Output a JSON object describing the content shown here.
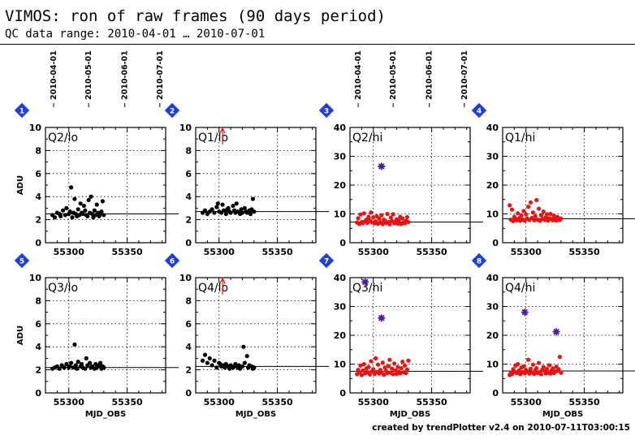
{
  "header": {
    "title": "VIMOS: ron of raw frames (90 days period)",
    "subtitle": "QC data range: 2010-04-01 … 2010-07-01"
  },
  "footer": {
    "text": "created by trendPlotter v2.4 on 2010-07-11T03:00:15"
  },
  "colors": {
    "lo_points": "#000000",
    "hi_points": "#ee1111",
    "outlier": "#4a1aa0",
    "badge": "#1f3fd8",
    "median_line": "#000000",
    "grid": "#000000",
    "arrow": "#ee1111"
  },
  "chart_data": [
    {
      "type": "scatter",
      "badge": "1",
      "label": "Q2/lo",
      "ylim": [
        0,
        10
      ],
      "yticks": [
        0,
        2,
        4,
        6,
        8,
        10
      ],
      "xlim": [
        55280,
        55383
      ],
      "xticks": [
        55300,
        55350
      ],
      "date_axis": [
        "2010-04-01",
        "2010-05-01",
        "2010-06-01",
        "2010-07-01"
      ],
      "ylabel": "ADU",
      "xlabel": "",
      "median": 2.5,
      "point_color": "lo_points",
      "series": [
        {
          "x": [
            55286,
            55288,
            55290,
            55292,
            55293,
            55295,
            55297,
            55298,
            55300,
            55301,
            55302,
            55303,
            55304,
            55305,
            55306,
            55307,
            55308,
            55309,
            55310,
            55311,
            55312,
            55313,
            55314,
            55315,
            55316,
            55317,
            55318,
            55319,
            55320,
            55321,
            55322,
            55323,
            55324,
            55325,
            55326,
            55327,
            55328,
            55329,
            55330
          ],
          "y": [
            2.4,
            2.2,
            2.6,
            2.5,
            2.3,
            2.8,
            2.4,
            3.0,
            2.5,
            2.7,
            4.8,
            2.2,
            2.6,
            3.8,
            2.5,
            2.3,
            2.9,
            2.4,
            3.4,
            2.6,
            2.5,
            3.2,
            2.8,
            2.4,
            2.3,
            3.7,
            2.6,
            4.0,
            2.5,
            2.2,
            2.8,
            2.4,
            3.3,
            2.6,
            2.3,
            2.5,
            2.7,
            3.6,
            2.4
          ]
        }
      ],
      "outliers": [],
      "arrow": false
    },
    {
      "type": "scatter",
      "badge": "2",
      "label": "Q1/lo",
      "ylim": [
        0,
        10
      ],
      "yticks": [
        0,
        2,
        4,
        6,
        8,
        10
      ],
      "xlim": [
        55280,
        55383
      ],
      "xticks": [
        55300,
        55350
      ],
      "date_axis": [],
      "ylabel": "",
      "xlabel": "",
      "median": 2.7,
      "point_color": "lo_points",
      "series": [
        {
          "x": [
            55286,
            55288,
            55290,
            55292,
            55294,
            55296,
            55298,
            55299,
            55300,
            55302,
            55303,
            55304,
            55306,
            55307,
            55308,
            55309,
            55310,
            55312,
            55313,
            55314,
            55315,
            55316,
            55318,
            55319,
            55320,
            55322,
            55323,
            55324,
            55326,
            55327,
            55328,
            55329,
            55330
          ],
          "y": [
            2.6,
            2.8,
            2.5,
            2.7,
            2.9,
            2.6,
            3.1,
            3.4,
            2.7,
            2.6,
            3.3,
            2.8,
            2.5,
            2.9,
            3.0,
            2.7,
            2.6,
            3.2,
            2.8,
            2.6,
            3.4,
            2.7,
            2.5,
            2.9,
            2.6,
            3.0,
            2.7,
            2.6,
            2.8,
            2.5,
            2.9,
            3.8,
            2.7
          ]
        }
      ],
      "outliers": [],
      "arrow": true,
      "arrow_x": 55303
    },
    {
      "type": "scatter",
      "badge": "3",
      "label": "Q2/hi",
      "ylim": [
        0,
        40
      ],
      "yticks": [
        0,
        10,
        20,
        30,
        40
      ],
      "xlim": [
        55280,
        55383
      ],
      "xticks": [
        55300,
        55350
      ],
      "date_axis": [
        "2010-04-01",
        "2010-05-01",
        "2010-06-01",
        "2010-07-01"
      ],
      "ylabel": "",
      "xlabel": "",
      "median": 7.2,
      "point_color": "hi_points",
      "series": [
        {
          "x": [
            55286,
            55287,
            55288,
            55289,
            55290,
            55291,
            55292,
            55293,
            55294,
            55295,
            55296,
            55297,
            55298,
            55299,
            55300,
            55301,
            55302,
            55303,
            55304,
            55305,
            55306,
            55307,
            55308,
            55309,
            55310,
            55311,
            55312,
            55313,
            55314,
            55315,
            55316,
            55317,
            55318,
            55319,
            55320,
            55321,
            55322,
            55323,
            55324,
            55325,
            55326,
            55327,
            55328,
            55329,
            55330
          ],
          "y": [
            7.0,
            8.5,
            6.5,
            9.8,
            7.2,
            6.8,
            10.2,
            7.5,
            8.0,
            6.9,
            9.0,
            7.8,
            10.5,
            7.1,
            8.8,
            6.7,
            7.4,
            9.2,
            6.6,
            8.3,
            7.0,
            9.5,
            6.5,
            8.0,
            7.6,
            6.9,
            10.0,
            7.2,
            6.4,
            8.7,
            7.5,
            9.9,
            6.8,
            7.3,
            8.1,
            6.6,
            7.9,
            9.0,
            6.5,
            8.4,
            7.0,
            6.8,
            7.6,
            8.9,
            7.2
          ]
        }
      ],
      "outliers": [
        {
          "x": 55307,
          "y": 26.5
        }
      ],
      "arrow": false
    },
    {
      "type": "scatter",
      "badge": "4",
      "label": "Q1/hi",
      "ylim": [
        0,
        40
      ],
      "yticks": [
        0,
        10,
        20,
        30,
        40
      ],
      "xlim": [
        55280,
        55383
      ],
      "xticks": [
        55300,
        55350
      ],
      "date_axis": [],
      "ylabel": "",
      "xlabel": "",
      "median": 8.3,
      "point_color": "hi_points",
      "series": [
        {
          "x": [
            55286,
            55287,
            55288,
            55289,
            55290,
            55291,
            55292,
            55293,
            55294,
            55295,
            55296,
            55297,
            55298,
            55299,
            55300,
            55301,
            55302,
            55303,
            55304,
            55305,
            55306,
            55307,
            55308,
            55309,
            55310,
            55311,
            55312,
            55313,
            55314,
            55315,
            55316,
            55317,
            55318,
            55319,
            55320,
            55321,
            55322,
            55323,
            55324,
            55325,
            55326,
            55327,
            55328,
            55329,
            55330
          ],
          "y": [
            13.0,
            8.0,
            11.5,
            7.5,
            9.0,
            8.3,
            7.8,
            10.2,
            8.5,
            7.6,
            9.5,
            8.1,
            11.0,
            7.7,
            9.8,
            8.4,
            12.5,
            7.9,
            14.0,
            8.6,
            10.5,
            7.8,
            9.2,
            14.8,
            8.0,
            11.8,
            7.6,
            9.6,
            8.3,
            10.8,
            7.9,
            8.8,
            9.9,
            7.7,
            8.5,
            10.0,
            8.2,
            7.8,
            9.4,
            8.6,
            7.7,
            8.9,
            8.1,
            7.9,
            8.4
          ]
        }
      ],
      "outliers": [],
      "arrow": false
    },
    {
      "type": "scatter",
      "badge": "5",
      "label": "Q3/lo",
      "ylim": [
        0,
        10
      ],
      "yticks": [
        0,
        2,
        4,
        6,
        8,
        10
      ],
      "xlim": [
        55280,
        55383
      ],
      "xticks": [
        55300,
        55350
      ],
      "date_axis": [],
      "ylabel": "ADU",
      "xlabel": "MJD_OBS",
      "median": 2.2,
      "point_color": "lo_points",
      "series": [
        {
          "x": [
            55286,
            55288,
            55290,
            55292,
            55294,
            55296,
            55298,
            55300,
            55301,
            55302,
            55304,
            55305,
            55306,
            55307,
            55308,
            55310,
            55311,
            55312,
            55314,
            55315,
            55316,
            55318,
            55319,
            55320,
            55322,
            55323,
            55324,
            55326,
            55327,
            55328,
            55329,
            55330
          ],
          "y": [
            2.1,
            2.2,
            2.3,
            2.1,
            2.4,
            2.2,
            2.5,
            2.2,
            2.3,
            2.6,
            2.2,
            4.2,
            2.4,
            2.1,
            2.7,
            2.3,
            2.5,
            2.2,
            2.1,
            3.0,
            2.4,
            2.6,
            2.2,
            2.3,
            2.1,
            2.5,
            2.2,
            2.4,
            2.6,
            2.1,
            2.3,
            2.2
          ]
        }
      ],
      "outliers": [],
      "arrow": false
    },
    {
      "type": "scatter",
      "badge": "6",
      "label": "Q4/lo",
      "ylim": [
        0,
        10
      ],
      "yticks": [
        0,
        2,
        4,
        6,
        8,
        10
      ],
      "xlim": [
        55280,
        55383
      ],
      "xticks": [
        55300,
        55350
      ],
      "date_axis": [],
      "ylabel": "",
      "xlabel": "MJD_OBS",
      "median": 2.3,
      "point_color": "lo_points",
      "series": [
        {
          "x": [
            55286,
            55288,
            55290,
            55292,
            55294,
            55296,
            55298,
            55300,
            55301,
            55302,
            55304,
            55305,
            55306,
            55308,
            55309,
            55310,
            55312,
            55313,
            55314,
            55316,
            55317,
            55318,
            55320,
            55321,
            55322,
            55324,
            55325,
            55326,
            55328,
            55329,
            55330
          ],
          "y": [
            2.8,
            3.3,
            2.6,
            3.0,
            2.4,
            2.8,
            2.2,
            2.6,
            2.5,
            2.3,
            2.4,
            2.2,
            2.5,
            2.3,
            2.1,
            2.4,
            2.2,
            2.3,
            2.5,
            2.2,
            2.4,
            2.1,
            2.3,
            4.0,
            2.6,
            3.2,
            2.2,
            2.4,
            2.3,
            2.1,
            2.2
          ]
        }
      ],
      "outliers": [],
      "arrow": true,
      "arrow_x": 55303
    },
    {
      "type": "scatter",
      "badge": "7",
      "label": "Q3/hi",
      "ylim": [
        0,
        40
      ],
      "yticks": [
        0,
        10,
        20,
        30,
        40
      ],
      "xlim": [
        55280,
        55383
      ],
      "xticks": [
        55300,
        55350
      ],
      "date_axis": [],
      "ylabel": "",
      "xlabel": "MJD_OBS",
      "median": 7.5,
      "point_color": "hi_points",
      "series": [
        {
          "x": [
            55286,
            55287,
            55288,
            55289,
            55290,
            55291,
            55292,
            55293,
            55294,
            55295,
            55296,
            55297,
            55298,
            55299,
            55300,
            55301,
            55302,
            55303,
            55304,
            55305,
            55306,
            55307,
            55308,
            55309,
            55310,
            55311,
            55312,
            55313,
            55314,
            55315,
            55316,
            55317,
            55318,
            55319,
            55320,
            55321,
            55322,
            55323,
            55324,
            55325,
            55326,
            55327,
            55328,
            55329,
            55330
          ],
          "y": [
            6.5,
            8.0,
            7.0,
            9.5,
            6.2,
            7.8,
            10.0,
            6.8,
            8.5,
            7.2,
            9.0,
            6.4,
            11.0,
            7.5,
            8.2,
            6.6,
            12.0,
            7.3,
            9.8,
            6.7,
            8.0,
            7.1,
            10.5,
            6.3,
            8.8,
            7.6,
            6.9,
            9.3,
            11.5,
            7.0,
            8.4,
            6.5,
            10.2,
            7.8,
            6.6,
            9.0,
            7.4,
            6.8,
            8.6,
            10.8,
            7.2,
            9.5,
            6.9,
            8.1,
            11.2
          ]
        }
      ],
      "outliers": [
        {
          "x": 55293,
          "y": 38.5
        },
        {
          "x": 55307,
          "y": 26.0
        }
      ],
      "arrow": false
    },
    {
      "type": "scatter",
      "badge": "8",
      "label": "Q4/hi",
      "ylim": [
        0,
        40
      ],
      "yticks": [
        0,
        10,
        20,
        30,
        40
      ],
      "xlim": [
        55280,
        55383
      ],
      "xticks": [
        55300,
        55350
      ],
      "date_axis": [],
      "ylabel": "",
      "xlabel": "MJD_OBS",
      "median": 7.6,
      "point_color": "hi_points",
      "series": [
        {
          "x": [
            55286,
            55287,
            55288,
            55289,
            55290,
            55291,
            55292,
            55293,
            55294,
            55295,
            55296,
            55297,
            55298,
            55299,
            55300,
            55301,
            55302,
            55303,
            55304,
            55305,
            55306,
            55307,
            55308,
            55309,
            55310,
            55311,
            55312,
            55313,
            55314,
            55315,
            55316,
            55317,
            55318,
            55319,
            55320,
            55321,
            55322,
            55323,
            55324,
            55325,
            55326,
            55327,
            55328,
            55329,
            55330
          ],
          "y": [
            6.2,
            7.0,
            6.6,
            8.2,
            7.4,
            9.5,
            6.9,
            10.0,
            7.8,
            6.5,
            8.8,
            7.2,
            9.2,
            6.8,
            8.0,
            7.5,
            11.5,
            6.7,
            8.4,
            7.1,
            9.8,
            6.6,
            7.9,
            8.6,
            6.9,
            10.4,
            7.3,
            6.5,
            8.1,
            9.0,
            7.6,
            6.8,
            8.3,
            7.0,
            9.6,
            6.7,
            7.8,
            8.5,
            6.9,
            7.4,
            9.1,
            7.7,
            8.2,
            12.5,
            7.0
          ]
        }
      ],
      "outliers": [
        {
          "x": 55299,
          "y": 28.0
        },
        {
          "x": 55326,
          "y": 21.2
        }
      ],
      "arrow": false
    }
  ]
}
